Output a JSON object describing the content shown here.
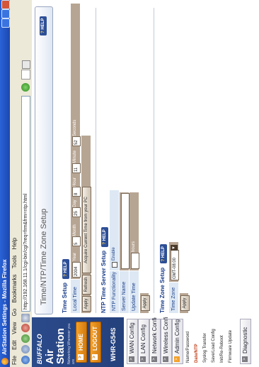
{
  "window": {
    "title": "AirStation Settings - Mozilla Firefox"
  },
  "menubar": [
    "File",
    "Edit",
    "View",
    "Go",
    "Bookmarks",
    "Tools",
    "Help"
  ],
  "address_bar": {
    "url": "http://192.168.11.1/cgi-bin/cgi?req=frm&frm=ntp.html"
  },
  "brand": {
    "company": "BUFFALO",
    "product_line1": "Air",
    "product_line2": "Station",
    "tagline": "Networking Wherever you are",
    "home_label": "HOME",
    "logout_label": "LOGOUT",
    "model": "WHR-G54S"
  },
  "nav": {
    "items": [
      {
        "label": "WAN Config"
      },
      {
        "label": "LAN Config"
      },
      {
        "label": "Network Config"
      },
      {
        "label": "Wireless Config"
      },
      {
        "label": "Admin Config"
      }
    ],
    "subitems": [
      {
        "label": "Name/Password"
      },
      {
        "label": "Date/NTP"
      },
      {
        "label": "Syslog Transfer"
      },
      {
        "label": "Save/Load Config"
      },
      {
        "label": "Init/Re-Reboot"
      },
      {
        "label": "Firmware Update"
      }
    ],
    "diagnostic": "Diagnostic"
  },
  "page": {
    "title": "Time/NTP/Time Zone Setup",
    "help": "HELP"
  },
  "time_setup": {
    "title": "Time Setup",
    "local_time_label": "Local Time",
    "year": "2004",
    "year_unit": "Year",
    "month": "5",
    "month_unit": "Month",
    "day": "25",
    "day_unit": "Day",
    "hour": "8",
    "hour_unit": "Hour",
    "minute": "11",
    "minute_unit": "Minute",
    "second": "52",
    "second_unit": "Seconds",
    "apply": "Apply",
    "refresh": "Refresh",
    "acquire": "Acquire Current Time from your PC"
  },
  "ntp_setup": {
    "title": "NTP Time Server Setup",
    "functionality_label": "NTP Functionality",
    "enable_label": "Enable",
    "enabled": false,
    "server_label": "Server Name",
    "server_value": "",
    "update_label": "Update Time",
    "update_value": "",
    "update_unit": "hours",
    "apply": "Apply"
  },
  "tz_setup": {
    "title": "Time Zone Setup",
    "label": "Time Zone",
    "value": "GMT-08:00",
    "apply": "Apply"
  },
  "colors": {
    "sidebar_blue": "#2b4a8a",
    "button_orange": "#f4a12b",
    "label_cell": "#dde8f4",
    "value_cell": "#b7a593",
    "section_title": "#1c3f8a"
  }
}
